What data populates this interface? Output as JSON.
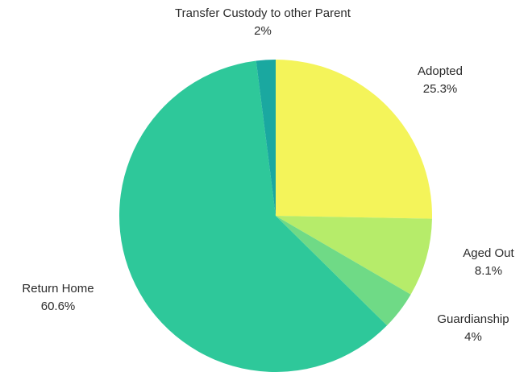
{
  "chart_data": {
    "type": "pie",
    "title": "",
    "start_angle_deg": 0,
    "direction": "clockwise",
    "slices": [
      {
        "label": "Adopted",
        "value": 25.3,
        "value_text": "25.3%",
        "color": "#f4f45a"
      },
      {
        "label": "Aged Out",
        "value": 8.1,
        "value_text": "8.1%",
        "color": "#b6ec6a"
      },
      {
        "label": "Guardianship",
        "value": 4,
        "value_text": "4%",
        "color": "#6fda86"
      },
      {
        "label": "Return Home",
        "value": 60.6,
        "value_text": "60.6%",
        "color": "#2ec89a"
      },
      {
        "label": "Transfer Custody to other Parent",
        "value": 2,
        "value_text": "2%",
        "color": "#1aa8a0"
      }
    ]
  }
}
